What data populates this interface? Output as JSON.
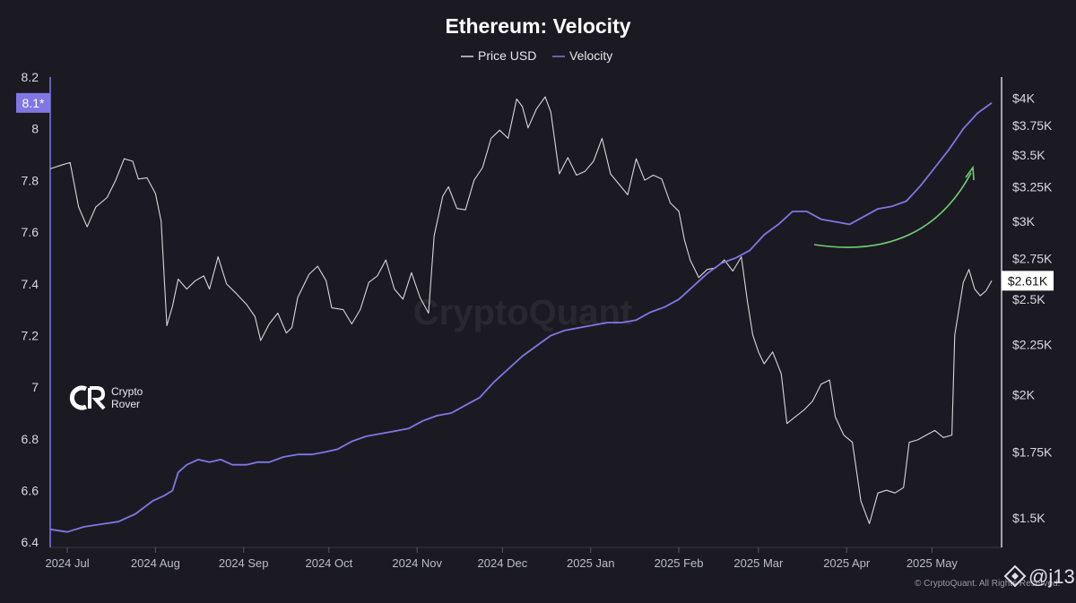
{
  "chart_data": {
    "type": "line",
    "title": "Ethereum: Velocity",
    "legend": {
      "placement": "top-center",
      "entries": [
        {
          "name": "Price USD",
          "color": "#d7d7d7"
        },
        {
          "name": "Velocity",
          "color": "#7f77e6"
        }
      ]
    },
    "x_axis": {
      "tick_labels": [
        "2024 Jul",
        "2024 Aug",
        "2024 Sep",
        "2024 Oct",
        "2024 Nov",
        "2024 Dec",
        "2025 Jan",
        "2025 Feb",
        "2025 Mar",
        "2025 Apr",
        "2025 May"
      ],
      "range": [
        "2024-06-25",
        "2025-05-22"
      ]
    },
    "y_left": {
      "series": "Velocity",
      "range": [
        6.38,
        8.2
      ],
      "ticks": [
        "8.2",
        "8",
        "7.8",
        "7.6",
        "7.4",
        "7.2",
        "7",
        "6.8",
        "6.6",
        "6.4"
      ],
      "current_label": "8.1*",
      "current_value": 8.1
    },
    "y_right": {
      "series": "Price USD",
      "scale": "log",
      "range": [
        1400,
        4200
      ],
      "ticks": [
        {
          "value": 4000,
          "label": "$4K"
        },
        {
          "value": 3750,
          "label": "$3.75K"
        },
        {
          "value": 3500,
          "label": "$3.5K"
        },
        {
          "value": 3250,
          "label": "$3.25K"
        },
        {
          "value": 3000,
          "label": "$3K"
        },
        {
          "value": 2750,
          "label": "$2.75K"
        },
        {
          "value": 2500,
          "label": "$2.5K"
        },
        {
          "value": 2250,
          "label": "$2.25K"
        },
        {
          "value": 2000,
          "label": "$2K"
        },
        {
          "value": 1750,
          "label": "$1.75K"
        },
        {
          "value": 1500,
          "label": "$1.5K"
        }
      ],
      "current_label": "$2.61K",
      "current_value": 2610
    },
    "grid": false,
    "series": [
      {
        "name": "Price USD",
        "color": "#d7d7d7",
        "points": [
          [
            "2024-06-25",
            3390
          ],
          [
            "2024-06-29",
            3420
          ],
          [
            "2024-07-02",
            3440
          ],
          [
            "2024-07-05",
            3100
          ],
          [
            "2024-07-08",
            2960
          ],
          [
            "2024-07-11",
            3100
          ],
          [
            "2024-07-15",
            3170
          ],
          [
            "2024-07-18",
            3300
          ],
          [
            "2024-07-21",
            3470
          ],
          [
            "2024-07-24",
            3450
          ],
          [
            "2024-07-26",
            3310
          ],
          [
            "2024-07-29",
            3320
          ],
          [
            "2024-08-01",
            3200
          ],
          [
            "2024-08-03",
            3000
          ],
          [
            "2024-08-05",
            2350
          ],
          [
            "2024-08-07",
            2460
          ],
          [
            "2024-08-09",
            2620
          ],
          [
            "2024-08-12",
            2560
          ],
          [
            "2024-08-15",
            2610
          ],
          [
            "2024-08-18",
            2640
          ],
          [
            "2024-08-20",
            2560
          ],
          [
            "2024-08-23",
            2760
          ],
          [
            "2024-08-26",
            2590
          ],
          [
            "2024-08-29",
            2540
          ],
          [
            "2024-09-02",
            2470
          ],
          [
            "2024-09-05",
            2400
          ],
          [
            "2024-09-07",
            2270
          ],
          [
            "2024-09-10",
            2360
          ],
          [
            "2024-09-13",
            2420
          ],
          [
            "2024-09-16",
            2310
          ],
          [
            "2024-09-18",
            2340
          ],
          [
            "2024-09-20",
            2510
          ],
          [
            "2024-09-24",
            2650
          ],
          [
            "2024-09-27",
            2700
          ],
          [
            "2024-09-30",
            2610
          ],
          [
            "2024-10-02",
            2450
          ],
          [
            "2024-10-06",
            2440
          ],
          [
            "2024-10-09",
            2360
          ],
          [
            "2024-10-12",
            2440
          ],
          [
            "2024-10-15",
            2600
          ],
          [
            "2024-10-18",
            2640
          ],
          [
            "2024-10-21",
            2740
          ],
          [
            "2024-10-24",
            2560
          ],
          [
            "2024-10-27",
            2500
          ],
          [
            "2024-10-30",
            2660
          ],
          [
            "2024-11-02",
            2510
          ],
          [
            "2024-11-05",
            2420
          ],
          [
            "2024-11-07",
            2900
          ],
          [
            "2024-11-10",
            3180
          ],
          [
            "2024-11-12",
            3250
          ],
          [
            "2024-11-15",
            3090
          ],
          [
            "2024-11-18",
            3080
          ],
          [
            "2024-11-21",
            3300
          ],
          [
            "2024-11-24",
            3400
          ],
          [
            "2024-11-27",
            3640
          ],
          [
            "2024-11-30",
            3710
          ],
          [
            "2024-12-03",
            3640
          ],
          [
            "2024-12-06",
            3990
          ],
          [
            "2024-12-08",
            3920
          ],
          [
            "2024-12-10",
            3730
          ],
          [
            "2024-12-13",
            3900
          ],
          [
            "2024-12-16",
            4010
          ],
          [
            "2024-12-18",
            3870
          ],
          [
            "2024-12-21",
            3350
          ],
          [
            "2024-12-24",
            3480
          ],
          [
            "2024-12-27",
            3340
          ],
          [
            "2024-12-30",
            3370
          ],
          [
            "2025-01-02",
            3450
          ],
          [
            "2025-01-05",
            3640
          ],
          [
            "2025-01-08",
            3350
          ],
          [
            "2025-01-11",
            3270
          ],
          [
            "2025-01-14",
            3190
          ],
          [
            "2025-01-17",
            3470
          ],
          [
            "2025-01-20",
            3300
          ],
          [
            "2025-01-23",
            3340
          ],
          [
            "2025-01-26",
            3310
          ],
          [
            "2025-01-29",
            3130
          ],
          [
            "2025-02-01",
            3070
          ],
          [
            "2025-02-03",
            2870
          ],
          [
            "2025-02-05",
            2740
          ],
          [
            "2025-02-08",
            2630
          ],
          [
            "2025-02-11",
            2680
          ],
          [
            "2025-02-14",
            2690
          ],
          [
            "2025-02-17",
            2740
          ],
          [
            "2025-02-20",
            2670
          ],
          [
            "2025-02-23",
            2760
          ],
          [
            "2025-02-25",
            2500
          ],
          [
            "2025-02-27",
            2300
          ],
          [
            "2025-03-01",
            2210
          ],
          [
            "2025-03-03",
            2150
          ],
          [
            "2025-03-06",
            2210
          ],
          [
            "2025-03-09",
            2100
          ],
          [
            "2025-03-11",
            1870
          ],
          [
            "2025-03-14",
            1900
          ],
          [
            "2025-03-17",
            1930
          ],
          [
            "2025-03-20",
            1970
          ],
          [
            "2025-03-23",
            2050
          ],
          [
            "2025-03-26",
            2070
          ],
          [
            "2025-03-28",
            1900
          ],
          [
            "2025-03-31",
            1820
          ],
          [
            "2025-04-03",
            1790
          ],
          [
            "2025-04-06",
            1560
          ],
          [
            "2025-04-09",
            1480
          ],
          [
            "2025-04-12",
            1590
          ],
          [
            "2025-04-15",
            1600
          ],
          [
            "2025-04-18",
            1590
          ],
          [
            "2025-04-21",
            1610
          ],
          [
            "2025-04-23",
            1790
          ],
          [
            "2025-04-26",
            1800
          ],
          [
            "2025-04-29",
            1820
          ],
          [
            "2025-05-02",
            1840
          ],
          [
            "2025-05-05",
            1810
          ],
          [
            "2025-05-08",
            1820
          ],
          [
            "2025-05-09",
            2300
          ],
          [
            "2025-05-12",
            2600
          ],
          [
            "2025-05-14",
            2680
          ],
          [
            "2025-05-16",
            2560
          ],
          [
            "2025-05-18",
            2520
          ],
          [
            "2025-05-20",
            2550
          ],
          [
            "2025-05-22",
            2610
          ]
        ]
      },
      {
        "name": "Velocity",
        "color": "#7f77e6",
        "points": [
          [
            "2024-06-25",
            6.45
          ],
          [
            "2024-07-01",
            6.44
          ],
          [
            "2024-07-07",
            6.46
          ],
          [
            "2024-07-13",
            6.47
          ],
          [
            "2024-07-19",
            6.48
          ],
          [
            "2024-07-25",
            6.51
          ],
          [
            "2024-07-31",
            6.56
          ],
          [
            "2024-08-04",
            6.58
          ],
          [
            "2024-08-07",
            6.6
          ],
          [
            "2024-08-09",
            6.67
          ],
          [
            "2024-08-12",
            6.7
          ],
          [
            "2024-08-16",
            6.72
          ],
          [
            "2024-08-20",
            6.71
          ],
          [
            "2024-08-24",
            6.72
          ],
          [
            "2024-08-28",
            6.7
          ],
          [
            "2024-09-02",
            6.7
          ],
          [
            "2024-09-06",
            6.71
          ],
          [
            "2024-09-10",
            6.71
          ],
          [
            "2024-09-15",
            6.73
          ],
          [
            "2024-09-20",
            6.74
          ],
          [
            "2024-09-25",
            6.74
          ],
          [
            "2024-09-30",
            6.75
          ],
          [
            "2024-10-04",
            6.76
          ],
          [
            "2024-10-09",
            6.79
          ],
          [
            "2024-10-14",
            6.81
          ],
          [
            "2024-10-19",
            6.82
          ],
          [
            "2024-10-24",
            6.83
          ],
          [
            "2024-10-29",
            6.84
          ],
          [
            "2024-11-03",
            6.87
          ],
          [
            "2024-11-08",
            6.89
          ],
          [
            "2024-11-13",
            6.9
          ],
          [
            "2024-11-18",
            6.93
          ],
          [
            "2024-11-23",
            6.96
          ],
          [
            "2024-11-28",
            7.02
          ],
          [
            "2024-12-03",
            7.07
          ],
          [
            "2024-12-08",
            7.12
          ],
          [
            "2024-12-13",
            7.16
          ],
          [
            "2024-12-18",
            7.2
          ],
          [
            "2024-12-23",
            7.22
          ],
          [
            "2024-12-28",
            7.23
          ],
          [
            "2025-01-02",
            7.24
          ],
          [
            "2025-01-07",
            7.25
          ],
          [
            "2025-01-12",
            7.25
          ],
          [
            "2025-01-17",
            7.26
          ],
          [
            "2025-01-22",
            7.29
          ],
          [
            "2025-01-27",
            7.31
          ],
          [
            "2025-02-01",
            7.34
          ],
          [
            "2025-02-06",
            7.39
          ],
          [
            "2025-02-11",
            7.44
          ],
          [
            "2025-02-16",
            7.48
          ],
          [
            "2025-02-21",
            7.5
          ],
          [
            "2025-02-26",
            7.53
          ],
          [
            "2025-03-03",
            7.59
          ],
          [
            "2025-03-08",
            7.63
          ],
          [
            "2025-03-13",
            7.68
          ],
          [
            "2025-03-18",
            7.68
          ],
          [
            "2025-03-23",
            7.65
          ],
          [
            "2025-03-28",
            7.64
          ],
          [
            "2025-04-02",
            7.63
          ],
          [
            "2025-04-07",
            7.66
          ],
          [
            "2025-04-12",
            7.69
          ],
          [
            "2025-04-17",
            7.7
          ],
          [
            "2025-04-22",
            7.72
          ],
          [
            "2025-04-27",
            7.78
          ],
          [
            "2025-05-02",
            7.85
          ],
          [
            "2025-05-07",
            7.92
          ],
          [
            "2025-05-12",
            8.0
          ],
          [
            "2025-05-17",
            8.06
          ],
          [
            "2025-05-22",
            8.1
          ]
        ]
      }
    ]
  },
  "watermark": "CryptoQuant",
  "brand": {
    "line1": "Crypto",
    "line2": "Rover"
  },
  "credit": "© CryptoQuant. All Rights Reserved.",
  "handle": "@j13",
  "colors": {
    "background": "#1b1a22",
    "velocity": "#7f77e6",
    "price": "#d7d7d7",
    "arrow": "#6fcf73"
  }
}
